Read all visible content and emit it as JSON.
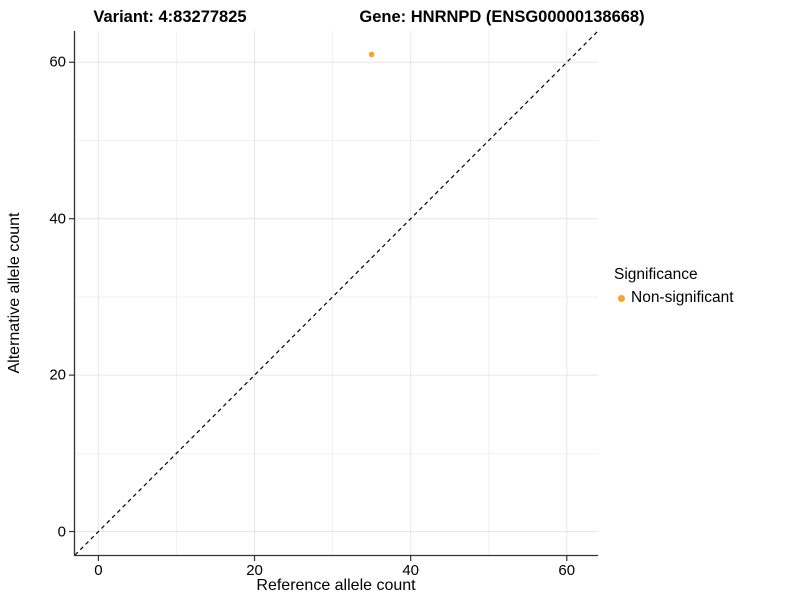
{
  "chart_data": {
    "type": "scatter",
    "titles": {
      "left": "Variant: 4:83277825",
      "right": "Gene: HNRNPD (ENSG00000138668)"
    },
    "xlabel": "Reference allele count",
    "ylabel": "Alternative allele count",
    "xlim": [
      -3,
      64
    ],
    "ylim": [
      -3,
      64
    ],
    "x_ticks": [
      0,
      20,
      40,
      60
    ],
    "y_ticks": [
      0,
      20,
      40,
      60
    ],
    "x_minor_ticks": [
      10,
      30,
      50
    ],
    "y_minor_ticks": [
      10,
      30,
      50
    ],
    "grid": {
      "show": true,
      "major_color": "#e6e6e6",
      "minor_color": "#f2f2f2",
      "background": "#ffffff"
    },
    "axis_line_color": "#333333",
    "identity_line": {
      "slope": 1,
      "intercept": 0,
      "style": "dashed",
      "color": "#000000"
    },
    "series": [
      {
        "name": "Non-significant",
        "color": "#f9a32b",
        "points": [
          {
            "x": 35,
            "y": 61
          }
        ]
      }
    ],
    "legend": {
      "title": "Significance",
      "position": "right",
      "items": [
        {
          "label": "Non-significant",
          "color": "#f9a32b"
        }
      ]
    }
  }
}
